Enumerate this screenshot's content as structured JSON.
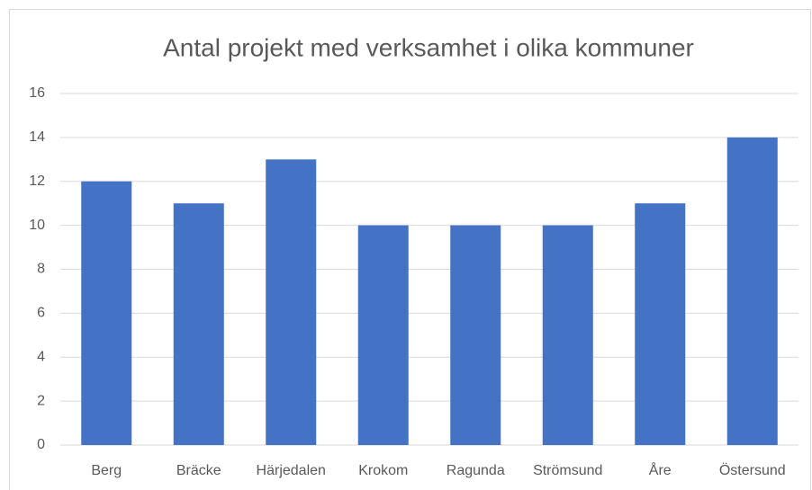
{
  "chart_data": {
    "type": "bar",
    "title": "Antal projekt med verksamhet i olika kommuner",
    "categories": [
      "Berg",
      "Bräcke",
      "Härjedalen",
      "Krokom",
      "Ragunda",
      "Strömsund",
      "Åre",
      "Östersund"
    ],
    "values": [
      12,
      11,
      13,
      10,
      10,
      10,
      11,
      14
    ],
    "color": "#4472c4",
    "ylim": [
      0,
      16
    ],
    "yticks": [
      0,
      2,
      4,
      6,
      8,
      10,
      12,
      14,
      16
    ],
    "grid": true
  }
}
